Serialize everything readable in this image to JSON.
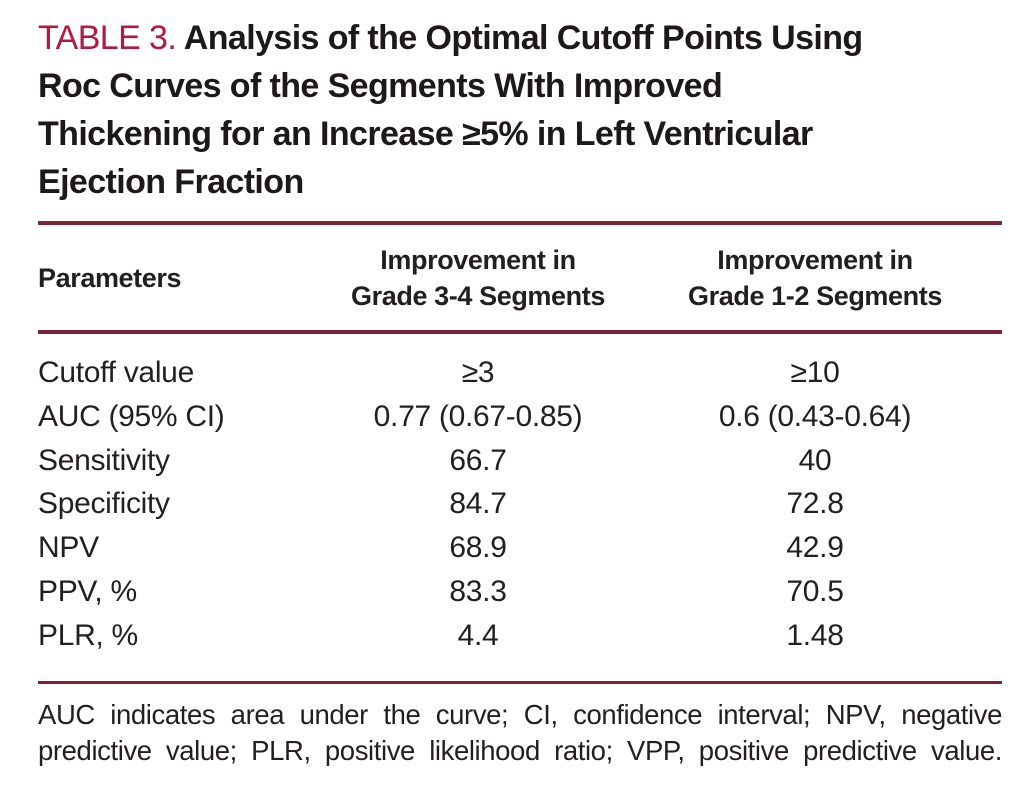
{
  "title": {
    "label": "TABLE 3.",
    "line1": "Analysis of the Optimal Cutoff Points Using",
    "line2": "Roc Curves of the Segments With Improved",
    "line3": "Thickening for an Increase ≥5% in Left Ventricular",
    "line4": "Ejection Fraction"
  },
  "table": {
    "columns": {
      "parameters": "Parameters",
      "grade34": {
        "line1": "Improvement in",
        "line2": "Grade 3-4 Segments"
      },
      "grade12": {
        "line1": "Improvement in",
        "line2": "Grade 1-2 Segments"
      }
    },
    "rows": [
      {
        "parameter": "Cutoff value",
        "grade34": "≥3",
        "grade12": "≥10"
      },
      {
        "parameter": "AUC (95% CI)",
        "grade34": "0.77 (0.67-0.85)",
        "grade12": "0.6 (0.43-0.64)"
      },
      {
        "parameter": "Sensitivity",
        "grade34": "66.7",
        "grade12": "40"
      },
      {
        "parameter": "Specificity",
        "grade34": "84.7",
        "grade12": "72.8"
      },
      {
        "parameter": "NPV",
        "grade34": "68.9",
        "grade12": "42.9"
      },
      {
        "parameter": "PPV, %",
        "grade34": "83.3",
        "grade12": "70.5"
      },
      {
        "parameter": "PLR, %",
        "grade34": "4.4",
        "grade12": "1.48"
      }
    ]
  },
  "footnote": {
    "line1": "AUC indicates area under the curve; CI, confidence interval; NPV, negative",
    "line2": "predictive value; PLR, positive likelihood ratio;  VPP, positive predictive value."
  },
  "colors": {
    "accent_red": "#b11842",
    "rule_maroon": "#7d2339",
    "text_black": "#231f20"
  }
}
